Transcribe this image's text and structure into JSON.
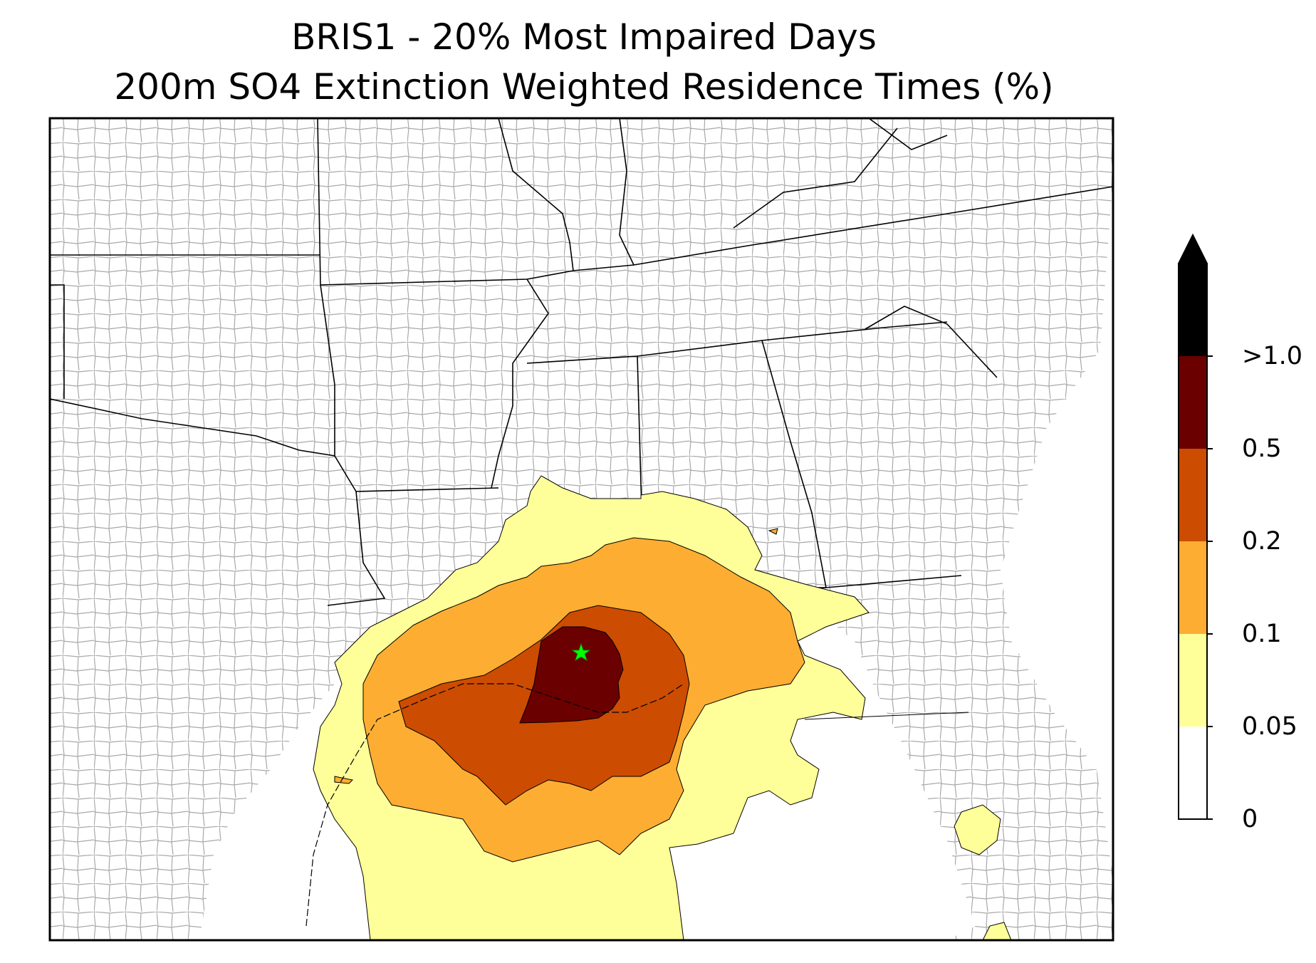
{
  "title": "BRIS1 - 20% Most Impaired Days",
  "subtitle": "200m SO4 Extinction Weighted Residence Times (%)",
  "colorbar": {
    "levels": [
      {
        "label": "0",
        "value": 0
      },
      {
        "label": "0.05",
        "value": 0.05
      },
      {
        "label": "0.1",
        "value": 0.1
      },
      {
        "label": "0.2",
        "value": 0.2
      },
      {
        "label": "0.5",
        "value": 0.5
      },
      {
        "label": ">1.0",
        "value": 1.0
      }
    ],
    "colors": [
      "#ffffff",
      "#ffff99",
      "#fdad32",
      "#cc4c02",
      "#6b0000",
      "#000000"
    ],
    "extend": "max"
  },
  "site_marker": {
    "name": "BRIS1",
    "symbol": "star",
    "color": "#00ff00"
  }
}
